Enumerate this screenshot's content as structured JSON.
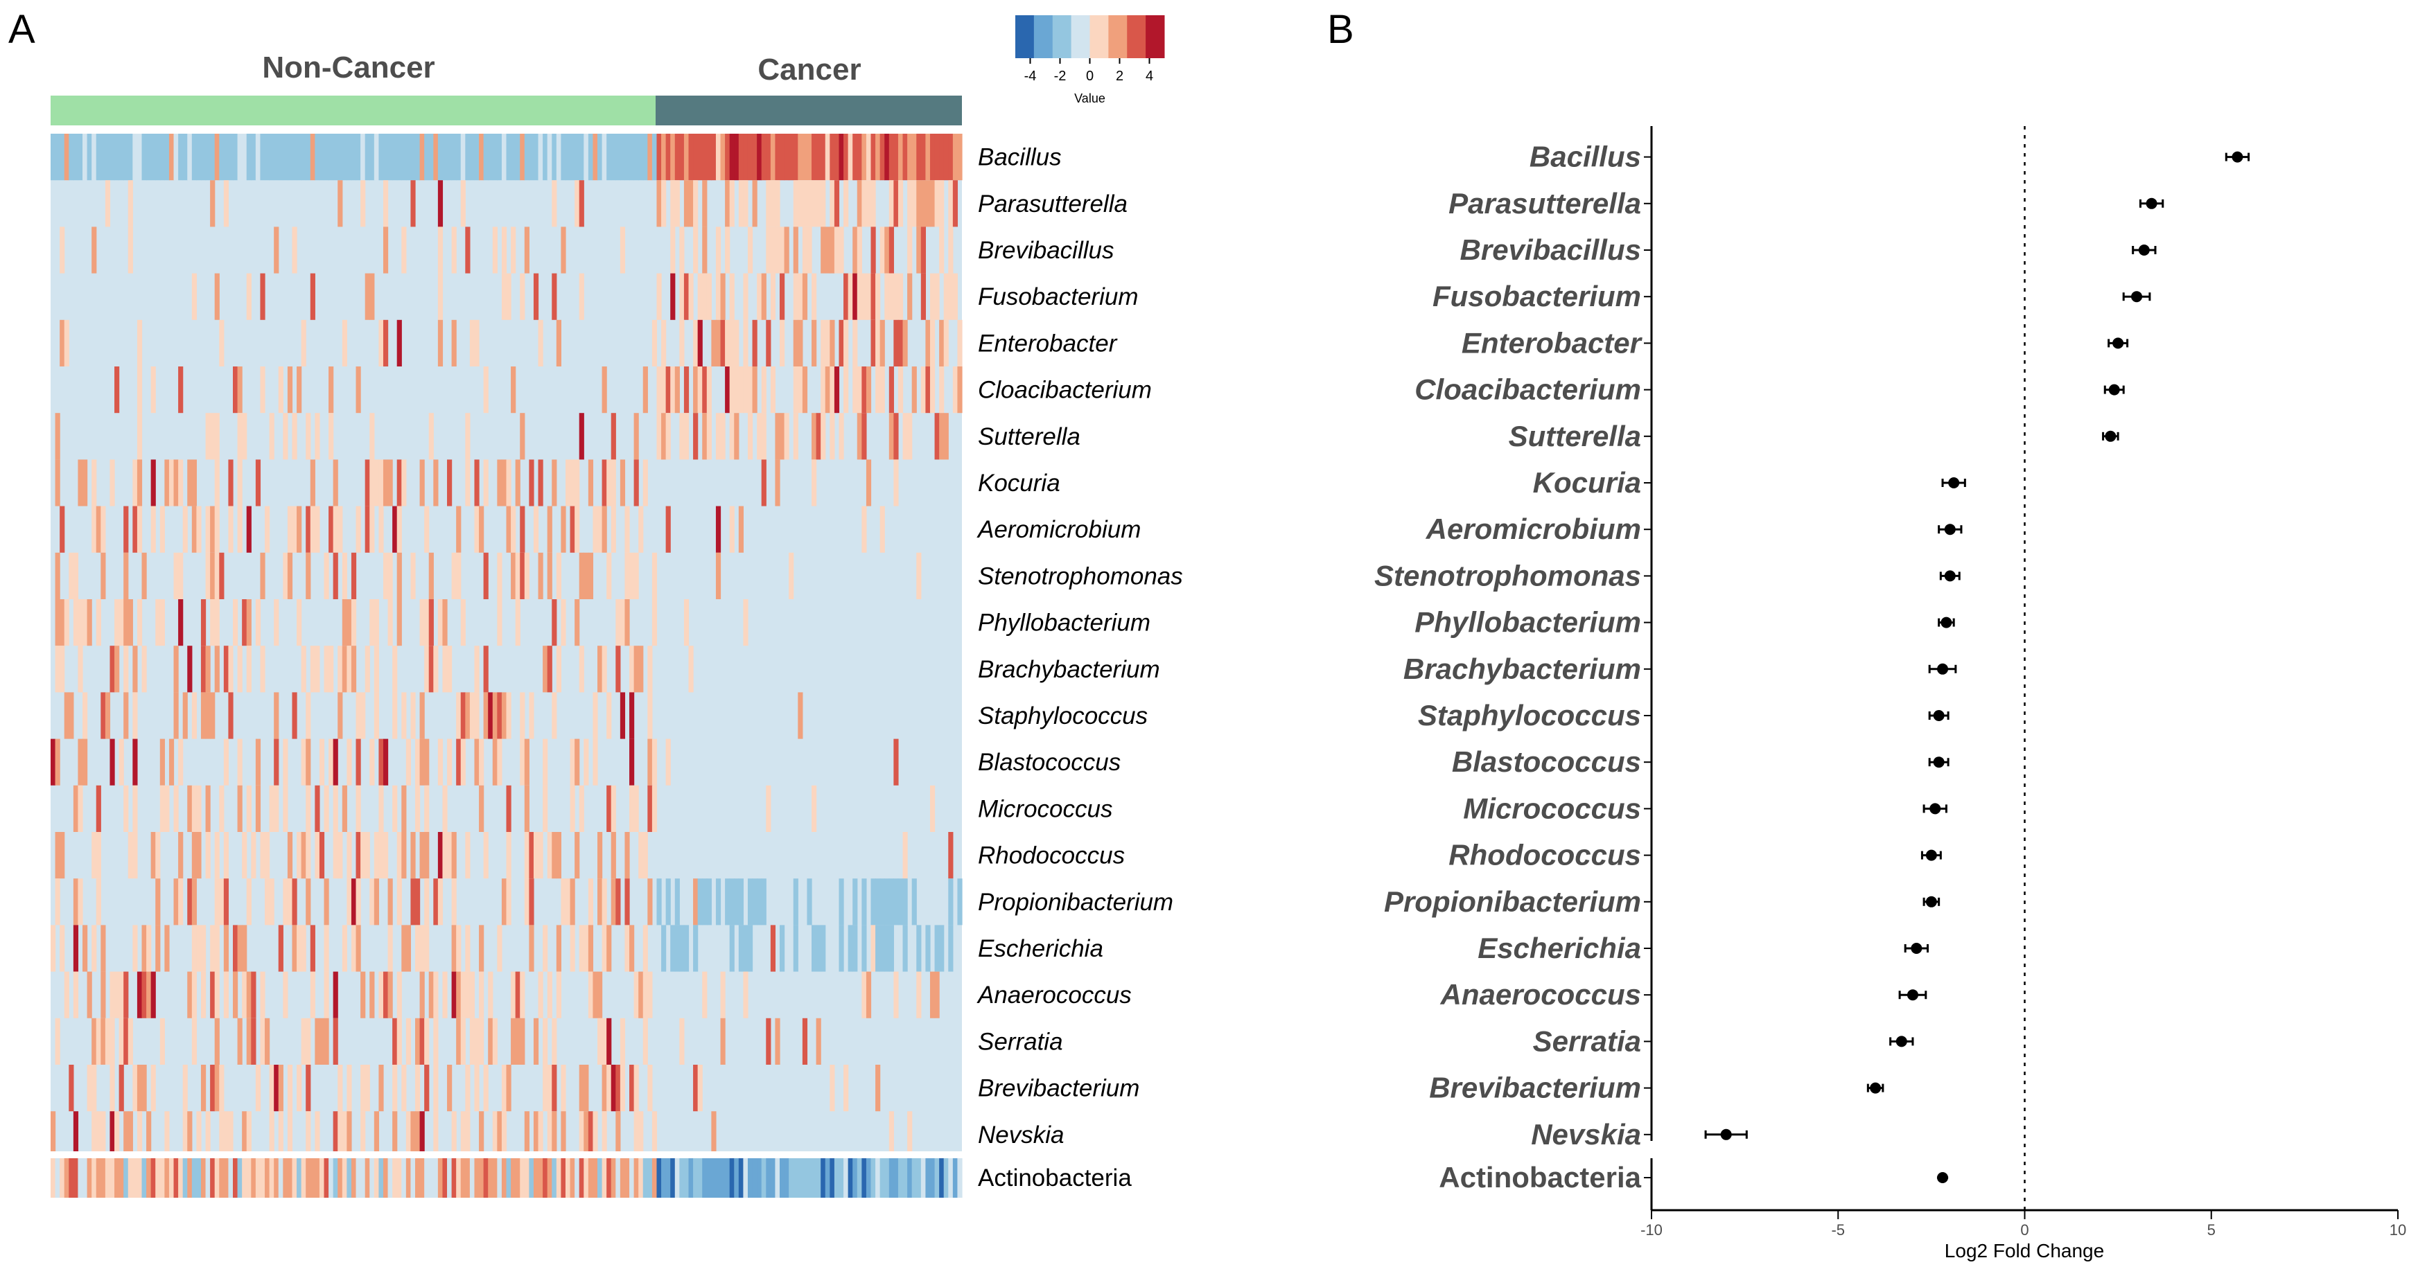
{
  "panels": {
    "a": "A",
    "b": "B"
  },
  "heatmap": {
    "groups": [
      {
        "name": "Non-Cancer",
        "color": "#9fe0a6"
      },
      {
        "name": "Cancer",
        "color": "#557a80"
      }
    ],
    "legend": {
      "title": "Value",
      "ticks": [
        "-4",
        "-2",
        "0",
        "2",
        "4"
      ]
    },
    "colors": {
      "neg_strong": "#2a67af",
      "neg_mid": "#6aa7d4",
      "neg_light": "#94c6e0",
      "zero": "#d2e4ef",
      "pos_light": "#fbd6c0",
      "pos_mid": "#f0a07c",
      "pos_strong": "#d9574a",
      "pos_max": "#b2172b"
    }
  },
  "chart_data": {
    "type": "scatter",
    "title": "",
    "xlabel": "Log2 Fold Change",
    "ylabel": "",
    "xlim": [
      -10,
      10
    ],
    "xticks": [
      "-10",
      "-5",
      "0",
      "5",
      "10"
    ],
    "reference_line": 0,
    "taxa": [
      "Bacillus",
      "Parasutterella",
      "Brevibacillus",
      "Fusobacterium",
      "Enterobacter",
      "Cloacibacterium",
      "Sutterella",
      "Kocuria",
      "Aeromicrobium",
      "Stenotrophomonas",
      "Phyllobacterium",
      "Brachybacterium",
      "Staphylococcus",
      "Blastococcus",
      "Micrococcus",
      "Rhodococcus",
      "Propionibacterium",
      "Escherichia",
      "Anaerococcus",
      "Serratia",
      "Brevibacterium",
      "Nevskia"
    ],
    "summary_taxon": "Actinobacteria",
    "values": [
      5.7,
      3.4,
      3.2,
      3.0,
      2.5,
      2.4,
      2.3,
      -1.9,
      -2.0,
      -2.0,
      -2.1,
      -2.2,
      -2.3,
      -2.3,
      -2.4,
      -2.5,
      -2.5,
      -2.9,
      -3.0,
      -3.3,
      -4.0,
      -8.0
    ],
    "errors": [
      0.3,
      0.3,
      0.3,
      0.35,
      0.25,
      0.25,
      0.2,
      0.3,
      0.3,
      0.25,
      0.2,
      0.35,
      0.25,
      0.25,
      0.3,
      0.25,
      0.2,
      0.3,
      0.35,
      0.3,
      0.2,
      0.55
    ],
    "summary_value": -2.2,
    "summary_error": 0.15
  }
}
